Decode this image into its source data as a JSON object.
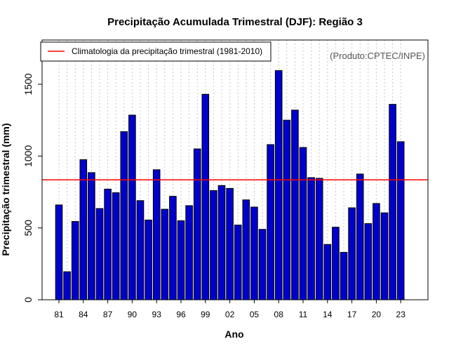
{
  "chart_data": {
    "type": "bar",
    "title": "Precipitação Acumulada Trimestral (DJF): Região 3",
    "xlabel": "Ano",
    "ylabel": "Precipitação trimestral (mm)",
    "ylim": [
      0,
      1800
    ],
    "yticks": [
      0,
      500,
      1000,
      1500
    ],
    "ytick_labels": [
      "0",
      "500",
      "1000",
      "1500"
    ],
    "bar_color": "#0000cc",
    "categories": [
      "81",
      "82",
      "83",
      "84",
      "85",
      "86",
      "87",
      "88",
      "89",
      "90",
      "91",
      "92",
      "93",
      "94",
      "95",
      "96",
      "97",
      "98",
      "99",
      "00",
      "01",
      "02",
      "03",
      "04",
      "05",
      "06",
      "07",
      "08",
      "09",
      "10",
      "11",
      "12",
      "13",
      "14",
      "15",
      "16",
      "17",
      "18",
      "19",
      "20",
      "21",
      "22",
      "23"
    ],
    "xtick_labels": [
      "81",
      "84",
      "87",
      "90",
      "93",
      "96",
      "99",
      "02",
      "05",
      "08",
      "11",
      "14",
      "17",
      "20",
      "23"
    ],
    "values": [
      660,
      195,
      545,
      975,
      885,
      635,
      770,
      745,
      1170,
      1285,
      690,
      555,
      905,
      630,
      720,
      550,
      655,
      1050,
      1430,
      760,
      795,
      775,
      520,
      695,
      645,
      490,
      1080,
      1595,
      1250,
      1320,
      1060,
      850,
      845,
      385,
      505,
      330,
      640,
      875,
      530,
      670,
      605,
      1360,
      1100
    ],
    "reference_line": {
      "value": 835,
      "color": "#ff0000",
      "label": "Climatologia da precipitação trimestral (1981-2010)"
    },
    "legend": {
      "position": "top-left",
      "entries": [
        "Climatologia da precipitação trimestral (1981-2010)"
      ]
    },
    "credit": "(Produto:CPTEC/INPE)",
    "grid": "vertical dotted"
  }
}
